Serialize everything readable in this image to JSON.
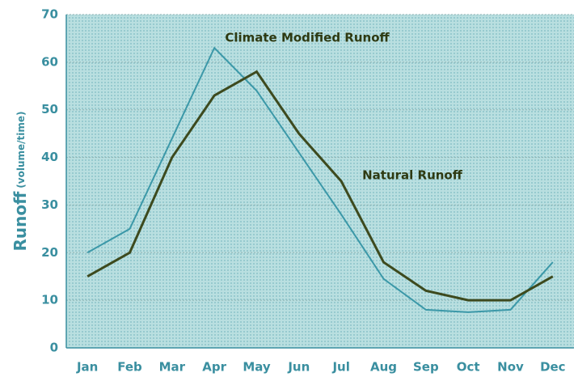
{
  "chart_data": {
    "type": "line",
    "ylabel": "Runoff",
    "ylabel_unit": "(volume/time)",
    "categories": [
      "Jan",
      "Feb",
      "Mar",
      "Apr",
      "May",
      "Jun",
      "Jul",
      "Aug",
      "Sep",
      "Oct",
      "Nov",
      "Dec"
    ],
    "series": [
      {
        "name": "Climate Modified Runoff",
        "color": "#3b98a8",
        "values": [
          20,
          25,
          44,
          63,
          54,
          41,
          28,
          14.5,
          8,
          7.5,
          8,
          18
        ]
      },
      {
        "name": "Natural Runoff",
        "color": "#3d4a1e",
        "values": [
          15,
          20,
          40,
          53,
          58,
          45,
          35,
          18,
          12,
          10,
          10,
          15
        ]
      }
    ],
    "ylim": [
      0,
      70
    ],
    "yticks": [
      0,
      10,
      20,
      30,
      40,
      50,
      60,
      70
    ],
    "grid": true
  }
}
